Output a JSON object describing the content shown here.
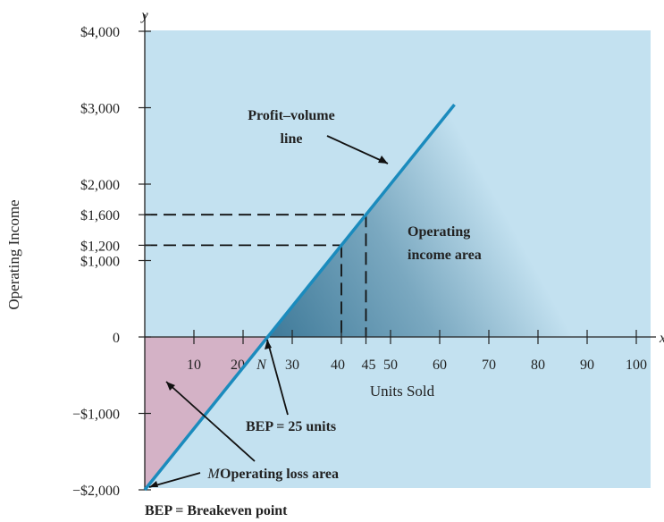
{
  "chart_data": {
    "type": "line",
    "title": "",
    "xlabel": "Units Sold",
    "ylabel": "Operating Income",
    "x_axis_letter": "x",
    "y_axis_letter": "y",
    "xlim": [
      0,
      110
    ],
    "ylim": [
      -2000,
      4000
    ],
    "x_ticks": [
      10,
      20,
      30,
      40,
      45,
      50,
      60,
      70,
      80,
      90,
      100
    ],
    "x_tick_labels": [
      "10",
      "20",
      "30",
      "40",
      "45",
      "50",
      "60",
      "70",
      "80",
      "90",
      "100"
    ],
    "y_ticks": [
      4000,
      3000,
      2000,
      1600,
      1200,
      1000,
      0,
      -1000,
      -2000
    ],
    "y_tick_labels": [
      "$4,000",
      "$3,000",
      "$2,000",
      "$1,600",
      "$1,200",
      "$1,000",
      "0",
      "−$1,000",
      "−$2,000"
    ],
    "series": [
      {
        "name": "Profit–volume line",
        "x": [
          0,
          25,
          40,
          45,
          63
        ],
        "y": [
          -2000,
          0,
          1200,
          1600,
          3040
        ]
      }
    ],
    "reference_points": [
      {
        "x": 40,
        "y": 1200
      },
      {
        "x": 45,
        "y": 1600
      }
    ],
    "breakeven": {
      "x": 25,
      "y": 0,
      "point_label": "N"
    },
    "start_point": {
      "x": 0,
      "y": -2000,
      "point_label": "M"
    },
    "annotations": {
      "pv_line_line1": "Profit–volume",
      "pv_line_line2": "line",
      "income_area_line1": "Operating",
      "income_area_line2": "income area",
      "bep_label": "BEP = 25 units",
      "loss_area": "Operating loss area",
      "footnote": "BEP = Breakeven point"
    },
    "colors": {
      "background": "#c3e1f0",
      "loss_area": "#d4b2c6",
      "income_area_dark": "#3f7a99",
      "line": "#1b8bbd",
      "dash": "#111111"
    }
  }
}
